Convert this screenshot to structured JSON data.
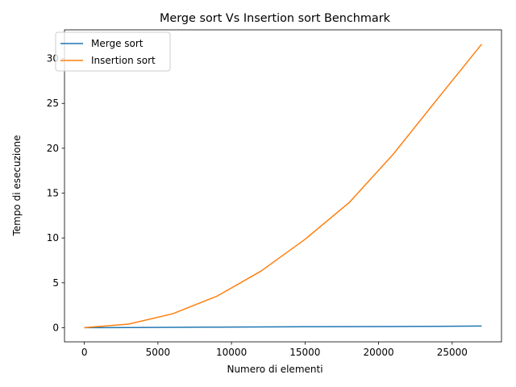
{
  "chart_data": {
    "type": "line",
    "title": "Merge sort Vs Insertion sort Benchmark",
    "xlabel": "Numero di elementi",
    "ylabel": "Tempo di esecuzione",
    "xlim": [
      -1350,
      28350
    ],
    "ylim": [
      -1.58,
      33.2
    ],
    "xticks": [
      0,
      5000,
      10000,
      15000,
      20000,
      25000
    ],
    "yticks": [
      0,
      5,
      10,
      15,
      20,
      25,
      30
    ],
    "grid": false,
    "legend_position": "top-left",
    "series": [
      {
        "name": "Merge sort",
        "color": "#1f77b4",
        "x": [
          0,
          3000,
          6000,
          9000,
          12000,
          15000,
          18000,
          21000,
          24000,
          27000
        ],
        "y": [
          0.0,
          0.02,
          0.04,
          0.06,
          0.08,
          0.1,
          0.12,
          0.13,
          0.15,
          0.18
        ]
      },
      {
        "name": "Insertion sort",
        "color": "#ff7f0e",
        "x": [
          0,
          3000,
          6000,
          9000,
          12000,
          15000,
          18000,
          21000,
          24000,
          27000
        ],
        "y": [
          0.0,
          0.4,
          1.55,
          3.5,
          6.3,
          9.85,
          13.95,
          19.35,
          25.5,
          31.6
        ]
      }
    ]
  }
}
